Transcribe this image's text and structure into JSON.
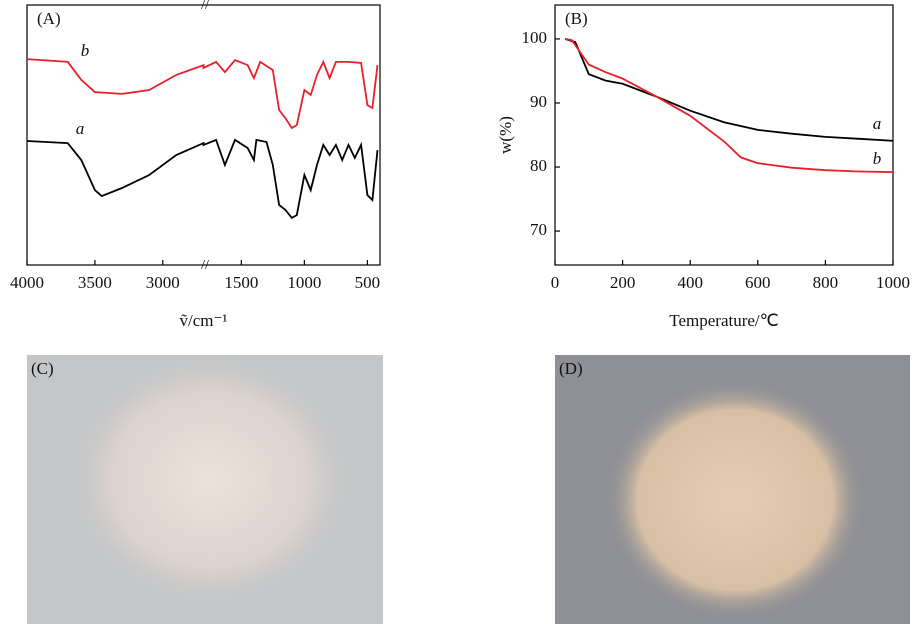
{
  "chart_data": [
    {
      "type": "line",
      "panel_label": "(A)",
      "x_label": "ṽ/cm⁻¹",
      "xlim_segments": [
        [
          4000,
          2700
        ],
        [
          1800,
          400
        ]
      ],
      "xticks": [
        4000,
        3500,
        3000,
        1500,
        1000,
        500
      ],
      "ylim": [
        0,
        100
      ],
      "series": [
        {
          "name": "b",
          "color": "#e8202a",
          "x": [
            4000,
            3700,
            3600,
            3500,
            3300,
            3100,
            2900,
            2700,
            1800,
            1700,
            1630,
            1550,
            1450,
            1400,
            1350,
            1250,
            1200,
            1150,
            1100,
            1060,
            1000,
            950,
            900,
            850,
            800,
            750,
            650,
            550,
            500,
            460,
            420
          ],
          "values": [
            79.2,
            78.1,
            71.2,
            66.5,
            65.8,
            67.3,
            73.1,
            76.9,
            75.8,
            78.1,
            74.2,
            78.8,
            76.9,
            71.9,
            78.1,
            75,
            59.6,
            56.5,
            52.7,
            53.8,
            67.3,
            65.4,
            73.1,
            78.1,
            71.9,
            78.1,
            78.1,
            77.7,
            61.5,
            60.4,
            76.9
          ]
        },
        {
          "name": "a",
          "color": "#000000",
          "x": [
            4000,
            3700,
            3600,
            3500,
            3450,
            3300,
            3100,
            2900,
            2700,
            1800,
            1700,
            1630,
            1550,
            1450,
            1400,
            1380,
            1300,
            1250,
            1200,
            1150,
            1100,
            1060,
            1000,
            950,
            900,
            850,
            800,
            750,
            700,
            650,
            600,
            550,
            500,
            460,
            420
          ],
          "values": [
            47.7,
            46.9,
            40.4,
            28.8,
            26.5,
            29.6,
            34.6,
            42.3,
            46.9,
            46.2,
            48.1,
            38.5,
            48.1,
            45,
            40.4,
            48.1,
            47.3,
            38.5,
            23.1,
            21.2,
            18.1,
            19.2,
            34.6,
            28.8,
            38.5,
            46.2,
            42.3,
            46.2,
            40.4,
            46.2,
            41.2,
            46.2,
            26.9,
            25,
            44.2
          ]
        }
      ]
    },
    {
      "type": "line",
      "panel_label": "(B)",
      "x_label": "Temperature/℃",
      "y_label": "w(%)",
      "xlim": [
        0,
        1000
      ],
      "xticks": [
        0,
        200,
        400,
        600,
        800,
        1000
      ],
      "ylim": [
        64.7,
        105.3
      ],
      "yticks": [
        70,
        80,
        90,
        100
      ],
      "series": [
        {
          "name": "a",
          "color": "#000000",
          "x": [
            30,
            60,
            100,
            150,
            200,
            300,
            400,
            500,
            600,
            700,
            800,
            900,
            1000
          ],
          "values": [
            100,
            99.5,
            94.5,
            93.5,
            93,
            91,
            88.8,
            87,
            85.8,
            85.2,
            84.7,
            84.4,
            84.1
          ]
        },
        {
          "name": "b",
          "color": "#e8202a",
          "x": [
            30,
            50,
            100,
            150,
            200,
            300,
            400,
            500,
            550,
            600,
            700,
            800,
            900,
            1000
          ],
          "values": [
            100,
            99.8,
            96,
            94.8,
            93.8,
            91,
            88,
            84,
            81.5,
            80.6,
            79.9,
            79.5,
            79.3,
            79.2
          ]
        }
      ]
    }
  ],
  "photos": [
    {
      "label": "(C)"
    },
    {
      "label": "(D)"
    }
  ]
}
